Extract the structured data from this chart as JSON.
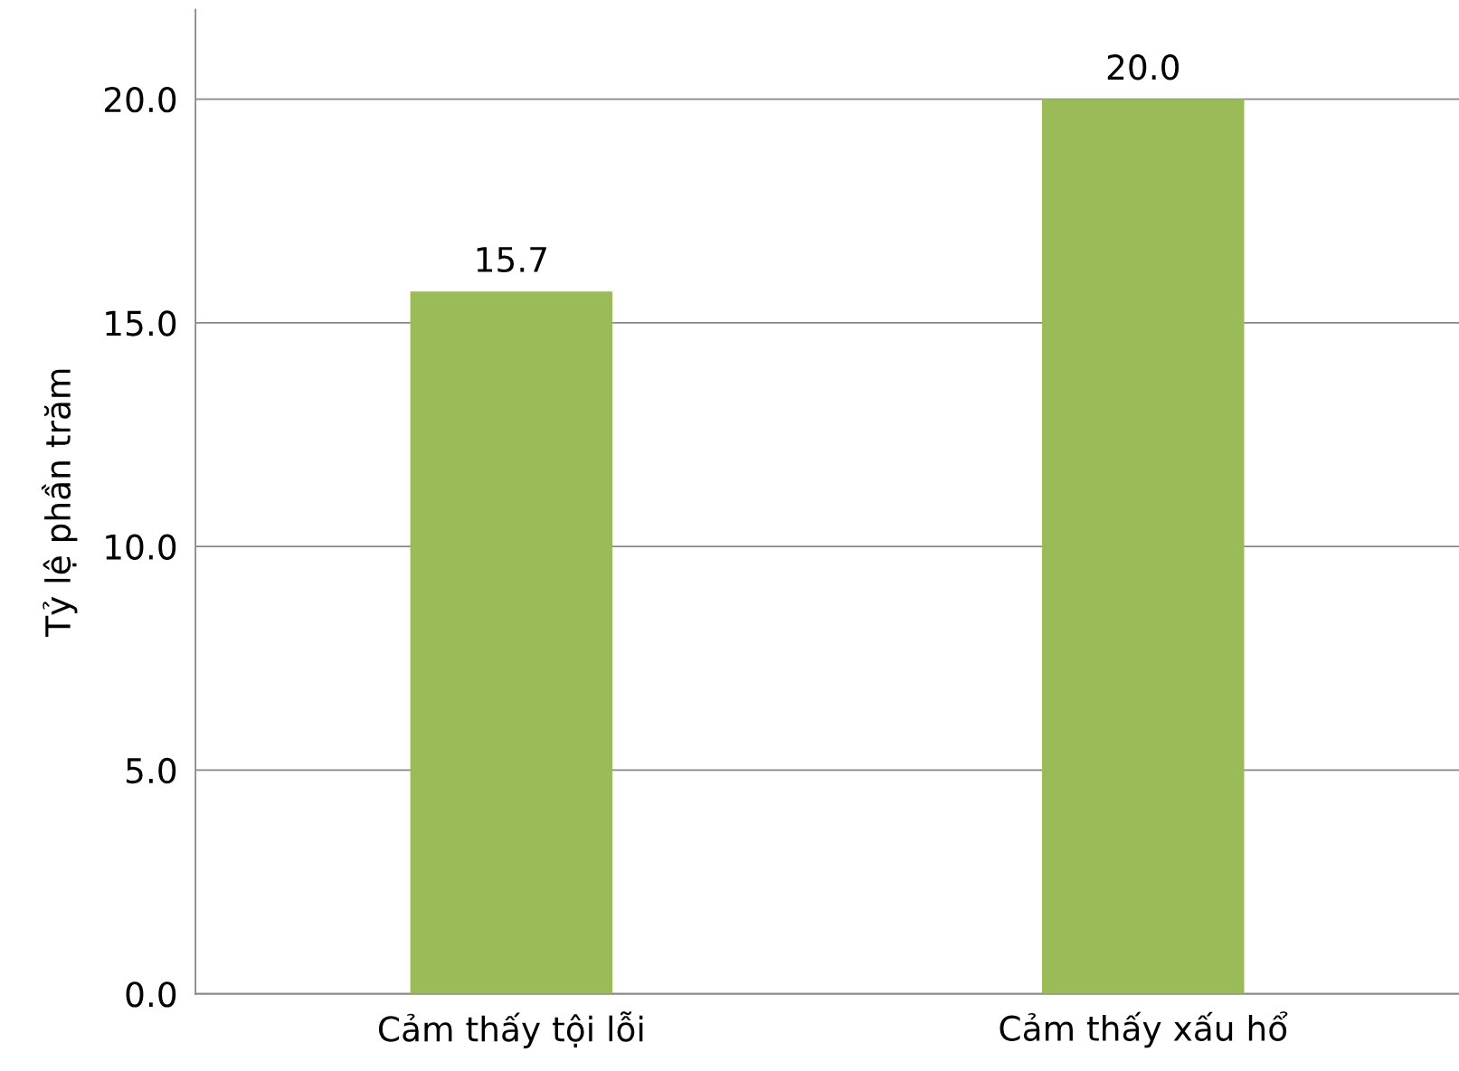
{
  "chart_data": {
    "type": "bar",
    "ylabel": "Tỷ lệ phần trăm",
    "categories": [
      "Cảm thấy tội lỗi",
      "Cảm thấy xấu hổ"
    ],
    "values": [
      15.7,
      20.0
    ],
    "color": "#9bbb59",
    "ylim": [
      0,
      22
    ],
    "yticks": [
      {
        "value": 0,
        "label": "0.0"
      },
      {
        "value": 5,
        "label": "5.0"
      },
      {
        "value": 10,
        "label": "10.0"
      },
      {
        "value": 15,
        "label": "15.0"
      },
      {
        "value": 20,
        "label": "20.0"
      }
    ],
    "value_labels": [
      "15.7",
      "20.0"
    ],
    "grid": "y"
  }
}
